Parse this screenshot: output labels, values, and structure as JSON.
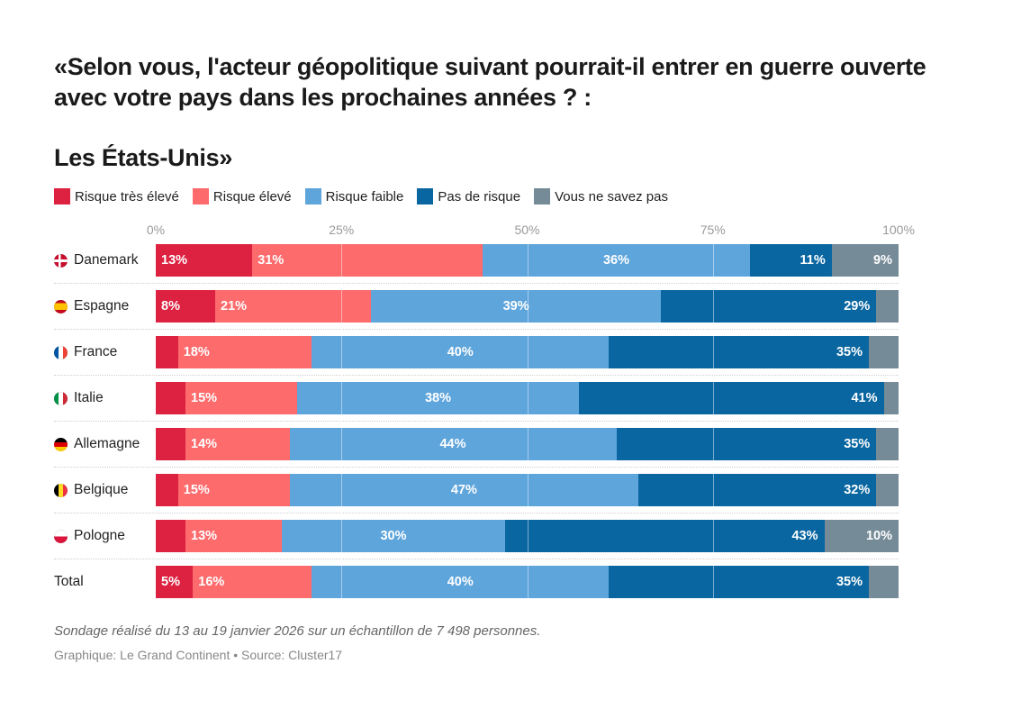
{
  "header": {
    "title": "«Selon vous, l'acteur géopolitique suivant pourrait-il entrer en guerre ouverte avec votre pays dans les prochaines années ? :",
    "subtitle": "Les États-Unis»"
  },
  "legend": [
    {
      "label": "Risque très élevé",
      "color": "#dc2240"
    },
    {
      "label": "Risque élevé",
      "color": "#fd6b6d"
    },
    {
      "label": "Risque faible",
      "color": "#5ea5dc"
    },
    {
      "label": "Pas de risque",
      "color": "#0a66a0"
    },
    {
      "label": "Vous ne savez pas",
      "color": "#758b97"
    }
  ],
  "chart_data": {
    "type": "bar",
    "orientation": "horizontal",
    "stacked": true,
    "xlim": [
      0,
      100
    ],
    "x_ticks": [
      "0%",
      "25%",
      "50%",
      "75%",
      "100%"
    ],
    "tick_values": [
      0,
      25,
      50,
      75,
      100
    ],
    "categories": [
      "Danemark",
      "Espagne",
      "France",
      "Italie",
      "Allemagne",
      "Belgique",
      "Pologne",
      "Total"
    ],
    "flags": [
      "dk",
      "es",
      "fr",
      "it",
      "de",
      "be",
      "pl",
      ""
    ],
    "series": [
      {
        "name": "Risque très élevé",
        "values": [
          13,
          8,
          3,
          4,
          4,
          3,
          4,
          5
        ]
      },
      {
        "name": "Risque élevé",
        "values": [
          31,
          21,
          18,
          15,
          14,
          15,
          13,
          16
        ]
      },
      {
        "name": "Risque faible",
        "values": [
          36,
          39,
          40,
          38,
          44,
          47,
          30,
          40
        ]
      },
      {
        "name": "Pas de risque",
        "values": [
          11,
          29,
          35,
          41,
          35,
          32,
          43,
          35
        ]
      },
      {
        "name": "Vous ne savez pas",
        "values": [
          9,
          3,
          4,
          2,
          3,
          3,
          10,
          4
        ]
      }
    ],
    "labels": [
      [
        "13%",
        "31%",
        "36%",
        "11%",
        "9%"
      ],
      [
        "8%",
        "21%",
        "39%",
        "29%",
        ""
      ],
      [
        "",
        "18%",
        "40%",
        "35%",
        ""
      ],
      [
        "",
        "15%",
        "38%",
        "41%",
        ""
      ],
      [
        "",
        "14%",
        "44%",
        "35%",
        ""
      ],
      [
        "",
        "15%",
        "47%",
        "32%",
        ""
      ],
      [
        "",
        "13%",
        "30%",
        "43%",
        "10%"
      ],
      [
        "5%",
        "16%",
        "40%",
        "35%",
        ""
      ]
    ]
  },
  "footer": {
    "note": "Sondage réalisé du 13 au 19 janvier 2026 sur un échantillon de 7 498 personnes.",
    "source": "Graphique: Le Grand Continent • Source: Cluster17"
  }
}
